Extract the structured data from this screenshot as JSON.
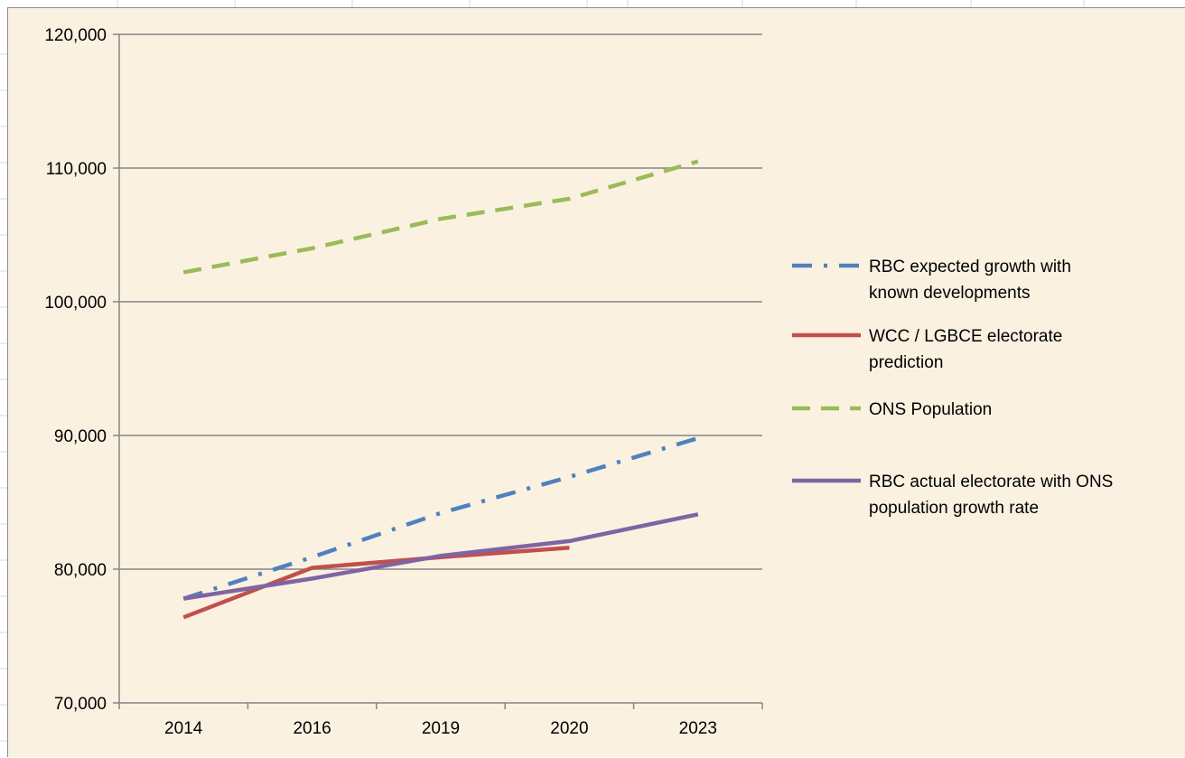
{
  "chart_data": {
    "type": "line",
    "title": "",
    "xlabel": "",
    "ylabel": "",
    "categories": [
      "2014",
      "2016",
      "2019",
      "2020",
      "2023"
    ],
    "ylim": [
      70000,
      120000
    ],
    "yticks": [
      70000,
      80000,
      90000,
      100000,
      110000,
      120000
    ],
    "ytick_labels": [
      "70,000",
      "80,000",
      "90,000",
      "100,000",
      "110,000",
      "120,000"
    ],
    "grid": true,
    "legend_position": "right",
    "series": [
      {
        "name_lines": [
          "RBC expected growth with",
          "known developments"
        ],
        "color": "#4f81bd",
        "style": "dash-dot",
        "values": [
          77800,
          80900,
          84200,
          86900,
          89800
        ]
      },
      {
        "name_lines": [
          "WCC / LGBCE electorate",
          "prediction"
        ],
        "color": "#c0504d",
        "style": "solid",
        "values": [
          76400,
          80100,
          80900,
          81600,
          null
        ]
      },
      {
        "name_lines": [
          "ONS Population"
        ],
        "color": "#9bbb59",
        "style": "dashed",
        "values": [
          102200,
          104000,
          106200,
          107700,
          110500
        ]
      },
      {
        "name_lines": [
          "RBC actual electorate with ONS",
          "population growth rate"
        ],
        "color": "#8064a2",
        "style": "solid",
        "values": [
          77800,
          79300,
          81000,
          82100,
          84100
        ]
      }
    ]
  }
}
